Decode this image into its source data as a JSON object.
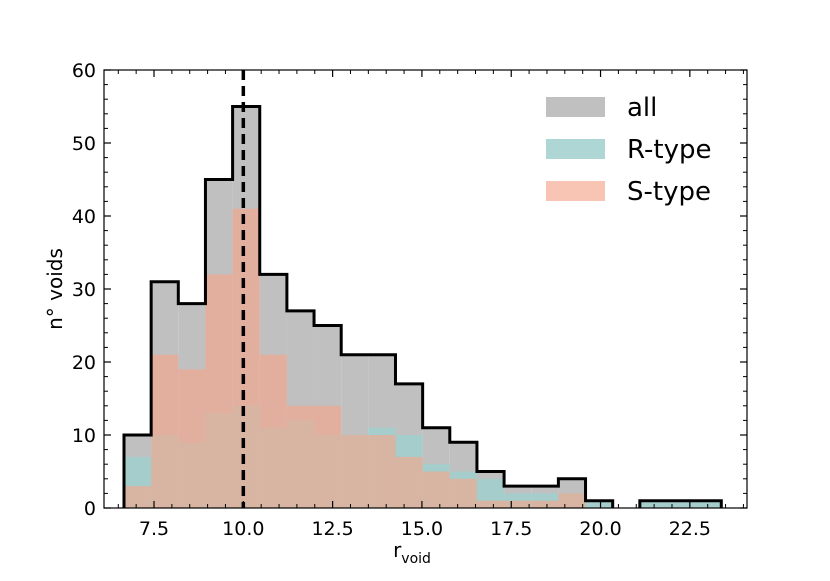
{
  "chart_data": {
    "type": "bar",
    "title": "",
    "xlabel_main": "r",
    "xlabel_sub": "void",
    "ylabel": "n° voids",
    "xlim": [
      6.1,
      24.1
    ],
    "ylim": [
      0,
      60
    ],
    "xticks": [
      "7.5",
      "10.0",
      "12.5",
      "15.0",
      "17.5",
      "20.0",
      "22.5"
    ],
    "xtick_values": [
      7.5,
      10.0,
      12.5,
      15.0,
      17.5,
      20.0,
      22.5
    ],
    "yticks": [
      "0",
      "10",
      "20",
      "30",
      "40",
      "50",
      "60"
    ],
    "ytick_values": [
      0,
      10,
      20,
      30,
      40,
      50,
      60
    ],
    "grid": false,
    "legend_position": "top-right",
    "bin_edges": [
      6.66,
      7.42,
      8.18,
      8.94,
      9.7,
      10.46,
      11.22,
      11.98,
      12.74,
      13.5,
      14.26,
      15.02,
      15.78,
      16.54,
      17.3,
      18.06,
      18.82,
      19.58,
      20.34,
      21.1,
      21.86,
      22.62,
      23.38
    ],
    "series": [
      {
        "name": "all",
        "color": "#c0c0c0",
        "values": [
          10,
          31,
          28,
          45,
          55,
          32,
          27,
          25,
          21,
          21,
          17,
          11,
          9,
          5,
          3,
          3,
          4,
          1,
          0,
          1,
          1,
          1
        ]
      },
      {
        "name": "R-type",
        "color": "#9fcfcd",
        "values": [
          7,
          10,
          9,
          13,
          14,
          11,
          12,
          10,
          10,
          11,
          10,
          6,
          5,
          4,
          2,
          2,
          2,
          1,
          0,
          1,
          1,
          1
        ]
      },
      {
        "name": "S-type",
        "color": "#f4a68e",
        "values": [
          3,
          21,
          19,
          32,
          41,
          21,
          14,
          14,
          10,
          10,
          7,
          5,
          4,
          1,
          1,
          1,
          2,
          0,
          0,
          0,
          0,
          0
        ]
      }
    ],
    "vline_x": 10.0
  }
}
